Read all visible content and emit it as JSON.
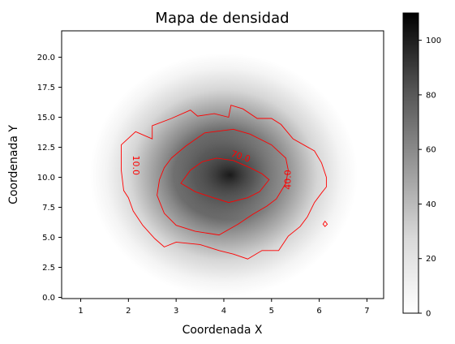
{
  "chart_data": {
    "type": "heatmap",
    "title": "Mapa de densidad",
    "xlabel": "Coordenada X",
    "ylabel": "Coordenada Y",
    "xlim": [
      0.6,
      7.35
    ],
    "ylim": [
      -0.1,
      22.2
    ],
    "xticks": [
      "1",
      "2",
      "3",
      "4",
      "5",
      "6",
      "7"
    ],
    "yticks": [
      "0.0",
      "2.5",
      "5.0",
      "7.5",
      "10.0",
      "12.5",
      "15.0",
      "17.5",
      "20.0"
    ],
    "colormap": "Greys",
    "colorbar": {
      "range": [
        0,
        110
      ],
      "ticks": [
        "0",
        "20",
        "40",
        "60",
        "80",
        "100"
      ]
    },
    "density_peak": {
      "x": 4.0,
      "y": 10.2,
      "value": 108
    },
    "contours": [
      {
        "level": "10.0",
        "label": "10.0",
        "color": "#ff0000",
        "points": [
          [
            1.85,
            12.7
          ],
          [
            2.15,
            13.8
          ],
          [
            2.5,
            13.2
          ],
          [
            2.5,
            14.3
          ],
          [
            2.9,
            14.9
          ],
          [
            3.3,
            15.6
          ],
          [
            3.45,
            15.1
          ],
          [
            3.8,
            15.3
          ],
          [
            4.1,
            15.0
          ],
          [
            4.15,
            16.0
          ],
          [
            4.4,
            15.7
          ],
          [
            4.7,
            14.9
          ],
          [
            5.0,
            14.9
          ],
          [
            5.2,
            14.4
          ],
          [
            5.45,
            13.2
          ],
          [
            5.9,
            12.2
          ],
          [
            6.05,
            11.2
          ],
          [
            6.15,
            10.0
          ],
          [
            6.15,
            9.2
          ],
          [
            6.05,
            8.7
          ],
          [
            5.9,
            7.9
          ],
          [
            5.75,
            6.7
          ],
          [
            5.6,
            5.9
          ],
          [
            5.35,
            5.1
          ],
          [
            5.15,
            3.9
          ],
          [
            4.8,
            3.9
          ],
          [
            4.5,
            3.2
          ],
          [
            4.2,
            3.6
          ],
          [
            3.9,
            3.9
          ],
          [
            3.5,
            4.4
          ],
          [
            3.0,
            4.6
          ],
          [
            2.75,
            4.2
          ],
          [
            2.55,
            4.9
          ],
          [
            2.3,
            6.0
          ],
          [
            2.1,
            7.2
          ],
          [
            2.0,
            8.3
          ],
          [
            1.9,
            8.9
          ],
          [
            1.85,
            10.6
          ]
        ]
      },
      {
        "level": "40.0",
        "label": "40.0",
        "color": "#ff0000",
        "points": [
          [
            2.9,
            11.6
          ],
          [
            3.2,
            12.6
          ],
          [
            3.6,
            13.7
          ],
          [
            4.2,
            14.0
          ],
          [
            4.55,
            13.6
          ],
          [
            5.0,
            12.7
          ],
          [
            5.3,
            11.6
          ],
          [
            5.35,
            10.6
          ],
          [
            5.3,
            9.5
          ],
          [
            5.1,
            8.2
          ],
          [
            4.9,
            7.6
          ],
          [
            4.6,
            6.9
          ],
          [
            4.3,
            6.1
          ],
          [
            3.9,
            5.2
          ],
          [
            3.4,
            5.5
          ],
          [
            3.0,
            6.0
          ],
          [
            2.75,
            7.0
          ],
          [
            2.6,
            8.5
          ],
          [
            2.65,
            9.8
          ],
          [
            2.75,
            10.8
          ]
        ]
      },
      {
        "level": "70.0",
        "label": "70.0",
        "color": "#ff0000",
        "points": [
          [
            3.1,
            9.5
          ],
          [
            3.3,
            10.6
          ],
          [
            3.55,
            11.3
          ],
          [
            3.85,
            11.6
          ],
          [
            4.2,
            11.4
          ],
          [
            4.55,
            10.8
          ],
          [
            4.8,
            10.3
          ],
          [
            4.95,
            9.8
          ],
          [
            4.75,
            8.8
          ],
          [
            4.5,
            8.3
          ],
          [
            4.1,
            7.9
          ],
          [
            3.7,
            8.4
          ],
          [
            3.4,
            8.8
          ]
        ]
      },
      {
        "level": "10.0",
        "label": "",
        "color": "#ff0000",
        "points": [
          [
            6.08,
            6.1
          ],
          [
            6.12,
            6.35
          ],
          [
            6.17,
            6.1
          ],
          [
            6.12,
            5.9
          ]
        ]
      }
    ],
    "contour_labels": [
      {
        "text": "10.0",
        "x": 2.15,
        "y": 11.0,
        "rotation": 90
      },
      {
        "text": "40.0",
        "x": 5.35,
        "y": 9.8,
        "rotation": -90
      },
      {
        "text": "70.0",
        "x": 4.35,
        "y": 11.7,
        "rotation": 18
      }
    ]
  }
}
